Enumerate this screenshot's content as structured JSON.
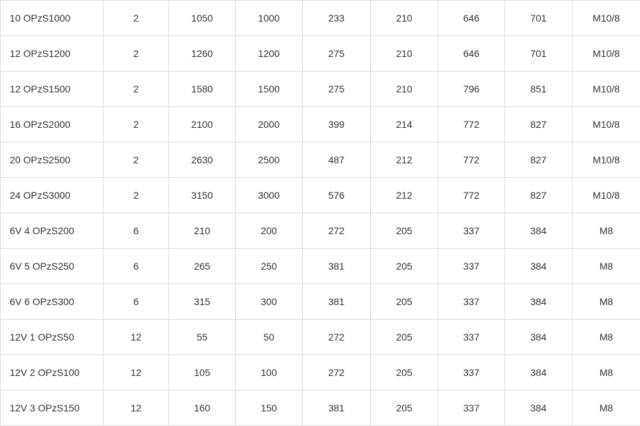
{
  "colors": {
    "border": "#dddddd",
    "text": "#333333",
    "cell_background": "#ffffff"
  },
  "table": {
    "rows": [
      [
        "10 OPzS1000",
        "2",
        "1050",
        "1000",
        "233",
        "210",
        "646",
        "701",
        "M10/8"
      ],
      [
        "12 OPzS1200",
        "2",
        "1260",
        "1200",
        "275",
        "210",
        "646",
        "701",
        "M10/8"
      ],
      [
        "12 OPzS1500",
        "2",
        "1580",
        "1500",
        "275",
        "210",
        "796",
        "851",
        "M10/8"
      ],
      [
        "16 OPzS2000",
        "2",
        "2100",
        "2000",
        "399",
        "214",
        "772",
        "827",
        "M10/8"
      ],
      [
        "20 OPzS2500",
        "2",
        "2630",
        "2500",
        "487",
        "212",
        "772",
        "827",
        "M10/8"
      ],
      [
        "24 OPzS3000",
        "2",
        "3150",
        "3000",
        "576",
        "212",
        "772",
        "827",
        "M10/8"
      ],
      [
        "6V 4 OPzS200",
        "6",
        "210",
        "200",
        "272",
        "205",
        "337",
        "384",
        "M8"
      ],
      [
        "6V 5 OPzS250",
        "6",
        "265",
        "250",
        "381",
        "205",
        "337",
        "384",
        "M8"
      ],
      [
        "6V 6 OPzS300",
        "6",
        "315",
        "300",
        "381",
        "205",
        "337",
        "384",
        "M8"
      ],
      [
        "12V 1 OPzS50",
        "12",
        "55",
        "50",
        "272",
        "205",
        "337",
        "384",
        "M8"
      ],
      [
        "12V 2 OPzS100",
        "12",
        "105",
        "100",
        "272",
        "205",
        "337",
        "384",
        "M8"
      ],
      [
        "12V 3 OPzS150",
        "12",
        "160",
        "150",
        "381",
        "205",
        "337",
        "384",
        "M8"
      ]
    ]
  }
}
